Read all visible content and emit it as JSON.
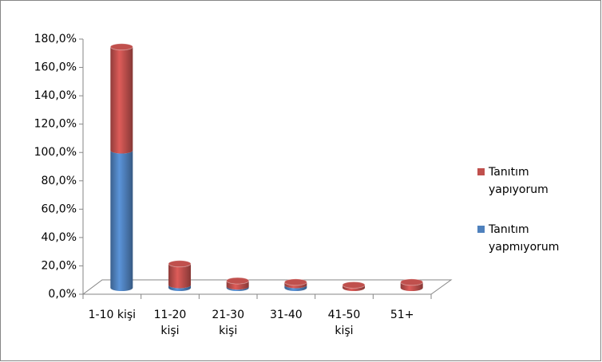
{
  "chart_data": {
    "type": "bar3d_stacked_cylinder",
    "categories": [
      "1-10 kişi",
      "11-20 kişi",
      "21-30 kişi",
      "31-40",
      "41-50 kişi",
      "51+"
    ],
    "series": [
      {
        "name": "Tanıtım yapmıyorum",
        "color": "#4f81bd",
        "values": [
          97,
          2,
          1,
          2,
          0,
          0
        ]
      },
      {
        "name": "Tanıtım yapıyorum",
        "color": "#c0504d",
        "values": [
          73,
          15,
          4,
          2,
          2,
          4
        ]
      }
    ],
    "ylim": [
      0,
      180
    ],
    "yticks": [
      {
        "value": 0,
        "label": "0,0%"
      },
      {
        "value": 20,
        "label": "20,0%"
      },
      {
        "value": 40,
        "label": "40,0%"
      },
      {
        "value": 60,
        "label": "60,0%"
      },
      {
        "value": 80,
        "label": "80,0%"
      },
      {
        "value": 100,
        "label": "100,0%"
      },
      {
        "value": 120,
        "label": "120,0%"
      },
      {
        "value": 140,
        "label": "140,0%"
      },
      {
        "value": 160,
        "label": "160,0%"
      },
      {
        "value": 180,
        "label": "180,0%"
      }
    ],
    "legend": "right"
  }
}
